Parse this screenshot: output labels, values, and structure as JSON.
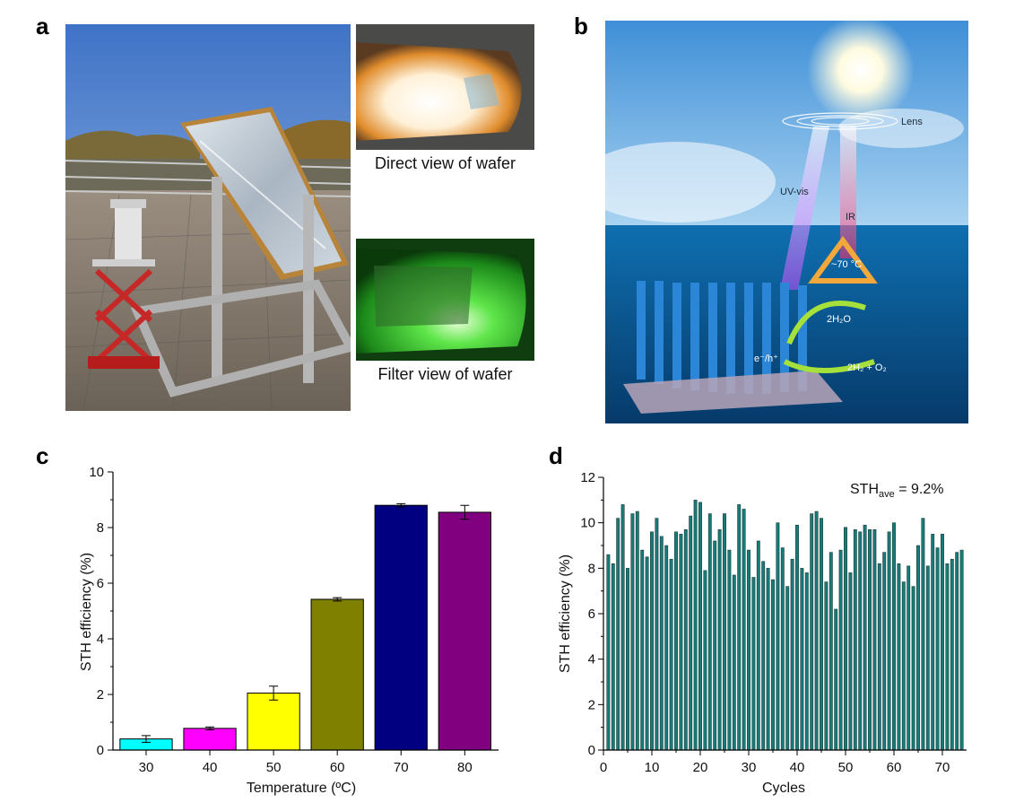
{
  "panels": {
    "a": {
      "letter": "a",
      "captions": {
        "direct": "Direct view of wafer",
        "filter": "Filter view of wafer"
      }
    },
    "b": {
      "letter": "b",
      "labels": {
        "lens": "Lens",
        "uv": "UV-vis",
        "ir": "IR",
        "temp": "~70 °C",
        "water": "2H₂O",
        "products": "2H₂ + O₂",
        "charge": "e⁻/h⁺"
      }
    },
    "c": {
      "letter": "c"
    },
    "d": {
      "letter": "d",
      "annotation_main": "STH",
      "annotation_sub": "ave",
      "annotation_value": " = 9.2%"
    }
  },
  "chart_data": [
    {
      "id": "c",
      "type": "bar",
      "xlabel": "Temperature (ºC)",
      "ylabel": "STH  efficiency (%)",
      "categories": [
        "30",
        "40",
        "50",
        "60",
        "70",
        "80"
      ],
      "values": [
        0.4,
        0.78,
        2.05,
        5.42,
        8.8,
        8.55
      ],
      "errors": [
        0.12,
        0.05,
        0.25,
        0.06,
        0.06,
        0.25
      ],
      "colors": [
        "#00ffff",
        "#ff00ff",
        "#ffff00",
        "#808000",
        "#000080",
        "#800080"
      ],
      "ylim": [
        0,
        10
      ],
      "yticks": [
        0,
        2,
        4,
        6,
        8,
        10
      ]
    },
    {
      "id": "d",
      "type": "bar",
      "xlabel": "Cycles",
      "ylabel": "STH  efficiency (%)",
      "color": "#1a7a78",
      "xlim": [
        0,
        75
      ],
      "xticks": [
        0,
        10,
        20,
        30,
        40,
        50,
        60,
        70
      ],
      "ylim": [
        0,
        12
      ],
      "yticks": [
        0,
        2,
        4,
        6,
        8,
        10,
        12
      ],
      "x": [
        1,
        2,
        3,
        4,
        5,
        6,
        7,
        8,
        9,
        10,
        11,
        12,
        13,
        14,
        15,
        16,
        17,
        18,
        19,
        20,
        21,
        22,
        23,
        24,
        25,
        26,
        27,
        28,
        29,
        30,
        31,
        32,
        33,
        34,
        35,
        36,
        37,
        38,
        39,
        40,
        41,
        42,
        43,
        44,
        45,
        46,
        47,
        48,
        49,
        50,
        51,
        52,
        53,
        54,
        55,
        56,
        57,
        58,
        59,
        60,
        61,
        62,
        63,
        64,
        65,
        66,
        67,
        68,
        69,
        70,
        71,
        72,
        73,
        74
      ],
      "values": [
        8.6,
        8.2,
        10.2,
        10.8,
        8.0,
        10.4,
        10.5,
        8.8,
        8.5,
        9.6,
        10.2,
        9.4,
        9.0,
        8.4,
        9.6,
        9.5,
        9.7,
        10.3,
        11.0,
        10.9,
        7.9,
        10.4,
        9.2,
        9.7,
        10.4,
        8.8,
        7.7,
        10.8,
        10.6,
        8.8,
        7.6,
        9.2,
        8.3,
        8.0,
        7.5,
        10.0,
        8.9,
        7.2,
        8.4,
        9.9,
        8.0,
        7.8,
        10.4,
        10.5,
        10.2,
        7.4,
        8.7,
        6.2,
        8.8,
        9.8,
        7.8,
        9.7,
        9.6,
        9.9,
        9.7,
        9.7,
        8.2,
        8.7,
        9.6,
        10.0,
        8.2,
        7.4,
        8.1,
        7.2,
        9.0,
        10.2,
        8.1,
        9.5,
        8.9,
        9.5,
        8.2,
        8.4,
        8.7,
        8.8
      ]
    }
  ]
}
